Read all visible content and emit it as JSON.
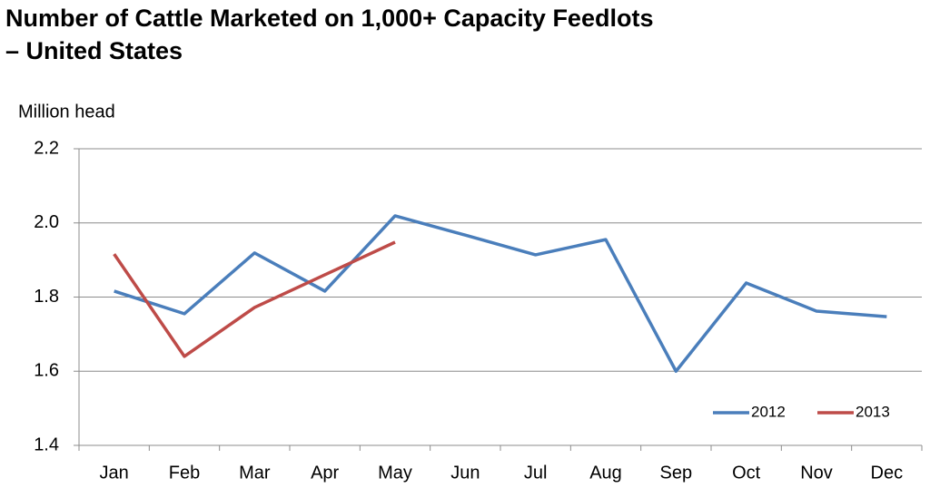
{
  "chart_data": {
    "type": "line",
    "title": "Number of Cattle Marketed on 1,000+ Capacity Feedlots – United States",
    "y_label": "Million head",
    "categories": [
      "Jan",
      "Feb",
      "Mar",
      "Apr",
      "May",
      "Jun",
      "Jul",
      "Aug",
      "Sep",
      "Oct",
      "Nov",
      "Dec"
    ],
    "series": [
      {
        "name": "2012",
        "color": "#4a7ebb",
        "values": [
          1.816,
          1.755,
          1.919,
          1.816,
          2.019,
          1.967,
          1.914,
          1.955,
          1.6,
          1.838,
          1.762,
          1.747
        ]
      },
      {
        "name": "2013",
        "color": "#be4b48",
        "values": [
          1.916,
          1.64,
          1.772,
          1.86,
          1.948,
          null,
          null,
          null,
          null,
          null,
          null,
          null
        ]
      }
    ],
    "ylim": [
      1.4,
      2.2
    ],
    "yticks": [
      1.4,
      1.6,
      1.8,
      {
        "value": 2.0,
        "label": "2.0"
      },
      2.2
    ],
    "grid": true,
    "legend": "lower right"
  }
}
